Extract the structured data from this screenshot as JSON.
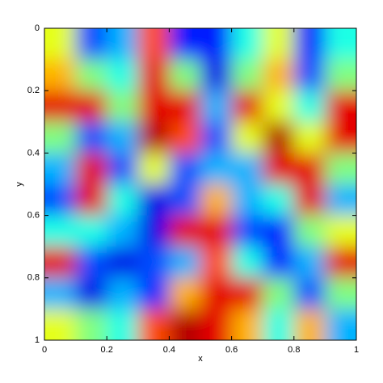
{
  "chart_data": {
    "type": "heatmap",
    "xlabel": "x",
    "ylabel": "y",
    "xlim": [
      0,
      1
    ],
    "ylim": [
      1,
      0
    ],
    "xticks": [
      0,
      0.2,
      0.4,
      0.6,
      0.8,
      1
    ],
    "yticks": [
      0,
      0.2,
      0.4,
      0.6,
      0.8,
      1
    ],
    "colormap": "jet",
    "clim": [
      0,
      1
    ],
    "z": [
      [
        0.6,
        0.2,
        0.3,
        0.8,
        0.15,
        0.15,
        0.4,
        0.6,
        0.15,
        0.4
      ],
      [
        0.7,
        0.5,
        0.4,
        0.9,
        0.5,
        0.1,
        0.5,
        0.7,
        0.2,
        0.5
      ],
      [
        0.9,
        0.9,
        0.5,
        0.9,
        0.9,
        0.3,
        0.9,
        0.6,
        0.4,
        0.9
      ],
      [
        0.5,
        0.2,
        0.3,
        0.95,
        0.8,
        0.2,
        0.6,
        0.95,
        0.6,
        0.9
      ],
      [
        0.3,
        0.9,
        0.2,
        0.6,
        0.2,
        0.3,
        0.3,
        0.9,
        0.9,
        0.5
      ],
      [
        0.2,
        0.9,
        0.4,
        0.1,
        0.2,
        0.7,
        0.3,
        0.4,
        0.9,
        0.3
      ],
      [
        0.4,
        0.4,
        0.3,
        0.1,
        0.9,
        0.9,
        0.2,
        0.15,
        0.5,
        0.6
      ],
      [
        0.9,
        0.2,
        0.1,
        0.2,
        0.3,
        0.8,
        0.4,
        0.15,
        0.3,
        0.9
      ],
      [
        0.3,
        0.1,
        0.3,
        0.15,
        0.7,
        0.9,
        0.9,
        0.5,
        0.2,
        0.5
      ],
      [
        0.6,
        0.5,
        0.4,
        0.8,
        0.95,
        0.9,
        0.7,
        0.4,
        0.7,
        0.3
      ]
    ]
  }
}
